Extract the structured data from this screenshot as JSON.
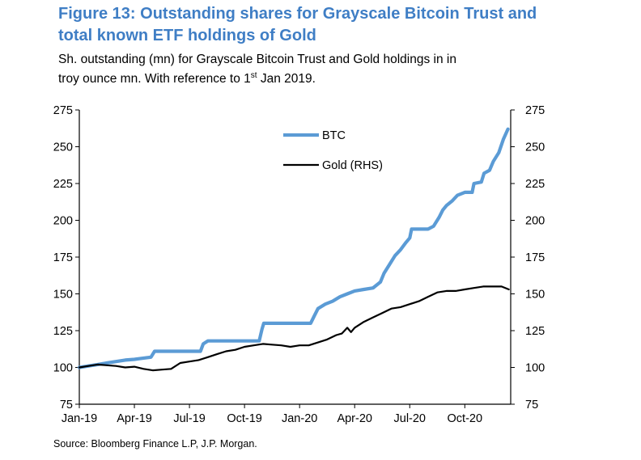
{
  "header": {
    "title_line1": "Figure 13: Outstanding shares for Grayscale Bitcoin Trust and",
    "title_line2": "total known ETF holdings of Gold",
    "subtitle_line1": "Sh. outstanding (mn) for Grayscale Bitcoin Trust and Gold holdings in in",
    "subtitle_line2_pre": "troy ounce mn. With reference to 1",
    "subtitle_line2_sup": "st",
    "subtitle_line2_post": " Jan 2019."
  },
  "footer": {
    "source": "Source: Bloomberg Finance L.P, J.P. Morgan."
  },
  "colors": {
    "title": "#3f7ec5",
    "btc": "#5b9bd5",
    "gold": "#000000",
    "axis": "#000000"
  },
  "chart_data": {
    "type": "line",
    "x_unit": "months since Jan-2019",
    "x_range": [
      0,
      23.5
    ],
    "x_ticks": [
      {
        "label": "Jan-19",
        "x": 0
      },
      {
        "label": "Apr-19",
        "x": 3
      },
      {
        "label": "Jul-19",
        "x": 6
      },
      {
        "label": "Oct-19",
        "x": 9
      },
      {
        "label": "Jan-20",
        "x": 12
      },
      {
        "label": "Apr-20",
        "x": 15
      },
      {
        "label": "Jul-20",
        "x": 18
      },
      {
        "label": "Oct-20",
        "x": 21
      }
    ],
    "ylim_left": [
      75,
      275
    ],
    "ylim_right": [
      75,
      275
    ],
    "y_ticks": [
      75,
      100,
      125,
      150,
      175,
      200,
      225,
      250,
      275
    ],
    "series": [
      {
        "name": "BTC",
        "axis": "left",
        "points": [
          [
            0,
            100
          ],
          [
            0.5,
            101
          ],
          [
            1,
            102
          ],
          [
            1.5,
            103
          ],
          [
            2,
            104
          ],
          [
            2.5,
            105
          ],
          [
            3,
            105.5
          ],
          [
            3.3,
            106
          ],
          [
            3.9,
            107
          ],
          [
            4.1,
            111
          ],
          [
            5,
            111
          ],
          [
            6,
            111
          ],
          [
            6.6,
            111
          ],
          [
            6.75,
            116
          ],
          [
            7,
            118
          ],
          [
            8,
            118
          ],
          [
            9,
            118
          ],
          [
            9.8,
            118
          ],
          [
            9.95,
            126
          ],
          [
            10.05,
            130
          ],
          [
            11,
            130
          ],
          [
            12,
            130
          ],
          [
            12.6,
            130
          ],
          [
            12.8,
            135
          ],
          [
            13,
            140
          ],
          [
            13.4,
            143
          ],
          [
            13.8,
            145
          ],
          [
            14.2,
            148
          ],
          [
            14.6,
            150
          ],
          [
            15,
            152
          ],
          [
            15.5,
            153
          ],
          [
            16,
            154
          ],
          [
            16.4,
            158
          ],
          [
            16.6,
            164
          ],
          [
            16.9,
            170
          ],
          [
            17.2,
            176
          ],
          [
            17.5,
            180
          ],
          [
            17.8,
            185
          ],
          [
            18,
            188
          ],
          [
            18.1,
            194
          ],
          [
            18.5,
            194
          ],
          [
            19,
            194
          ],
          [
            19.3,
            196
          ],
          [
            19.6,
            202
          ],
          [
            19.8,
            207
          ],
          [
            20,
            210
          ],
          [
            20.3,
            213
          ],
          [
            20.6,
            217
          ],
          [
            21,
            219
          ],
          [
            21.4,
            219
          ],
          [
            21.5,
            225
          ],
          [
            21.9,
            226
          ],
          [
            22.05,
            232
          ],
          [
            22.35,
            234
          ],
          [
            22.55,
            240
          ],
          [
            22.85,
            246
          ],
          [
            23.1,
            255
          ],
          [
            23.35,
            262
          ]
        ]
      },
      {
        "name": "Gold (RHS)",
        "axis": "right",
        "points": [
          [
            0,
            100
          ],
          [
            0.5,
            101
          ],
          [
            1,
            102
          ],
          [
            1.5,
            101.5
          ],
          [
            2,
            101
          ],
          [
            2.5,
            100
          ],
          [
            3,
            100.5
          ],
          [
            3.5,
            99
          ],
          [
            4,
            98
          ],
          [
            4.5,
            98.5
          ],
          [
            5,
            99
          ],
          [
            5.5,
            103
          ],
          [
            6,
            104
          ],
          [
            6.5,
            105
          ],
          [
            7,
            107
          ],
          [
            7.5,
            109
          ],
          [
            8,
            111
          ],
          [
            8.5,
            112
          ],
          [
            9,
            114
          ],
          [
            9.5,
            115
          ],
          [
            10,
            116
          ],
          [
            10.5,
            115.5
          ],
          [
            11,
            115
          ],
          [
            11.5,
            114
          ],
          [
            12,
            115
          ],
          [
            12.5,
            115
          ],
          [
            13,
            117
          ],
          [
            13.5,
            119
          ],
          [
            14,
            122
          ],
          [
            14.3,
            123
          ],
          [
            14.6,
            127
          ],
          [
            14.8,
            124
          ],
          [
            15,
            127
          ],
          [
            15.5,
            131
          ],
          [
            16,
            134
          ],
          [
            16.5,
            137
          ],
          [
            17,
            140
          ],
          [
            17.5,
            141
          ],
          [
            18,
            143
          ],
          [
            18.5,
            145
          ],
          [
            19,
            148
          ],
          [
            19.5,
            151
          ],
          [
            20,
            152
          ],
          [
            20.5,
            152
          ],
          [
            21,
            153
          ],
          [
            21.5,
            154
          ],
          [
            22,
            155
          ],
          [
            22.5,
            155
          ],
          [
            23,
            155
          ],
          [
            23.4,
            153
          ]
        ]
      }
    ],
    "legend": {
      "placement": "top-center"
    }
  }
}
